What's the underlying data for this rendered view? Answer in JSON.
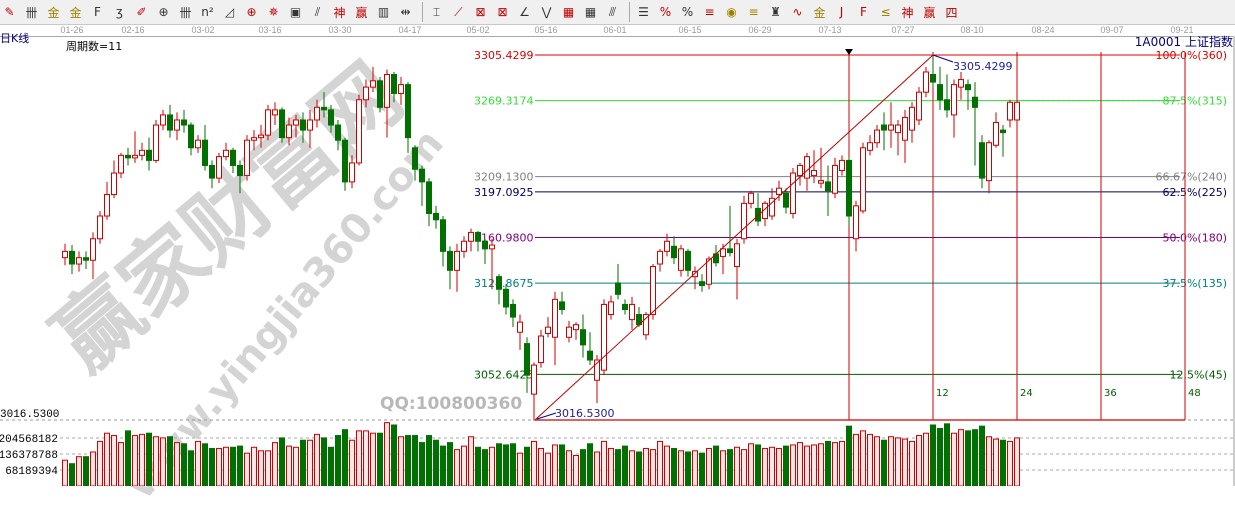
{
  "toolbar": {
    "icons": [
      "pen-icon",
      "vertical-lines-icon",
      "gold-split-icon",
      "gold-split-2-icon",
      "f-lines-icon",
      "spiral-icon",
      "pen-ruler-icon",
      "circle-cycle-icon",
      "cycle-lines-icon",
      "n2-lines-icon",
      "triangle-icon",
      "crosshair-icon",
      "star-target-icon",
      "box-grid-icon",
      "angle-lines-icon",
      "god-lines-icon",
      "win-lines-icon",
      "bars-grid-icon",
      "range-arrow-icon",
      "sep",
      "box-ruler-icon",
      "fan-icon",
      "gann-box-icon",
      "gann-grid-icon",
      "angle-icon",
      "wave-icon",
      "grid-icon",
      "grid-2-icon",
      "parallel-icon",
      "sep",
      "fibo-time-icon",
      "percent-fan-icon",
      "percent-icon",
      "percent-lines-icon",
      "gold-circle-icon",
      "gold-lines-icon",
      "tower-icon",
      "sine-wave-icon",
      "gold-box-icon",
      "j-fan-icon",
      "f-fan-icon",
      "gold-fan-icon",
      "god-fan-icon",
      "win-fan-icon",
      "four-fan-icon"
    ]
  },
  "header": {
    "period_type": "日K线",
    "cycle_count": "周期数=11",
    "symbol": "1A0001  上证指数"
  },
  "watermark": {
    "brand": "赢家财富网",
    "site": "www.yingjia360.com",
    "qq": "QQ:100800360"
  },
  "colors": {
    "up": "#d00000",
    "down": "#007000",
    "up_fill": "#ffe6e6",
    "fib_100": "#e00000",
    "fib_875": "#33dd33",
    "fib_6667": "#808080",
    "fib_625": "#000060",
    "fib_50": "#800080",
    "fib_375": "#008080",
    "fib_125": "#006000",
    "cycle_line": "#d00000"
  },
  "chart_data": {
    "type": "candlestick",
    "instrument": "1A0001  上证指数",
    "date_ticks": [
      "01-26",
      "02-16",
      "03-02",
      "03-16",
      "03-30",
      "04-17",
      "05-02",
      "05-16",
      "06-01",
      "06-15",
      "06-29",
      "07-13",
      "07-27",
      "08-10",
      "08-24",
      "09-07",
      "09-21"
    ],
    "price_range": [
      3016.53,
      3305.4299
    ],
    "swing_low": "3016.5300",
    "swing_high": "3305.4299",
    "price_axis_label": "3016.5300",
    "fib_levels": [
      {
        "price": "3305.4299",
        "label": "100.0%(360)",
        "color_key": "fib_100"
      },
      {
        "price": "3269.3174",
        "label": "87.5%(315)",
        "color_key": "fib_875"
      },
      {
        "price": "3209.1300",
        "label": "66.67%(240)",
        "color_key": "fib_6667"
      },
      {
        "price": "3197.0925",
        "label": "62.5%(225)",
        "color_key": "fib_625"
      },
      {
        "price": "3160.9800",
        "label": "50.0%(180)",
        "color_key": "fib_50"
      },
      {
        "price": "3124.8675",
        "label": "37.5%(135)",
        "color_key": "fib_375"
      },
      {
        "price": "3052.6425",
        "label": "12.5%(45)",
        "color_key": "fib_125"
      }
    ],
    "cycle_lines": [
      "12",
      "24",
      "36",
      "48"
    ],
    "volume_ticks": [
      "204568182",
      "136378788",
      "68189394"
    ],
    "volume_tick_values": [
      204568182,
      136378788,
      68189394
    ],
    "ohlc": [
      [
        3145,
        3156,
        3139,
        3150
      ],
      [
        3150,
        3155,
        3132,
        3140
      ],
      [
        3140,
        3150,
        3134,
        3145
      ],
      [
        3145,
        3150,
        3136,
        3143
      ],
      [
        3143,
        3165,
        3128,
        3160
      ],
      [
        3160,
        3182,
        3156,
        3178
      ],
      [
        3178,
        3205,
        3175,
        3195
      ],
      [
        3195,
        3222,
        3192,
        3212
      ],
      [
        3212,
        3228,
        3208,
        3226
      ],
      [
        3226,
        3232,
        3218,
        3224
      ],
      [
        3224,
        3245,
        3220,
        3226
      ],
      [
        3226,
        3236,
        3222,
        3230
      ],
      [
        3230,
        3240,
        3214,
        3222
      ],
      [
        3222,
        3254,
        3220,
        3250
      ],
      [
        3250,
        3262,
        3246,
        3258
      ],
      [
        3258,
        3266,
        3240,
        3246
      ],
      [
        3246,
        3260,
        3238,
        3254
      ],
      [
        3254,
        3262,
        3244,
        3250
      ],
      [
        3250,
        3252,
        3226,
        3232
      ],
      [
        3232,
        3242,
        3228,
        3238
      ],
      [
        3238,
        3250,
        3214,
        3218
      ],
      [
        3218,
        3222,
        3200,
        3208
      ],
      [
        3208,
        3228,
        3204,
        3225
      ],
      [
        3225,
        3236,
        3222,
        3230
      ],
      [
        3230,
        3232,
        3212,
        3218
      ],
      [
        3218,
        3222,
        3196,
        3210
      ],
      [
        3210,
        3242,
        3206,
        3238
      ],
      [
        3238,
        3246,
        3230,
        3240
      ],
      [
        3240,
        3250,
        3232,
        3242
      ],
      [
        3242,
        3266,
        3238,
        3262
      ],
      [
        3258,
        3268,
        3250,
        3262
      ],
      [
        3262,
        3264,
        3236,
        3240
      ],
      [
        3240,
        3256,
        3234,
        3250
      ],
      [
        3250,
        3258,
        3240,
        3254
      ],
      [
        3254,
        3260,
        3236,
        3246
      ],
      [
        3246,
        3262,
        3232,
        3254
      ],
      [
        3254,
        3270,
        3248,
        3264
      ],
      [
        3264,
        3276,
        3256,
        3262
      ],
      [
        3262,
        3266,
        3244,
        3250
      ],
      [
        3250,
        3254,
        3230,
        3238
      ],
      [
        3238,
        3240,
        3198,
        3205
      ],
      [
        3205,
        3226,
        3200,
        3220
      ],
      [
        3220,
        3274,
        3218,
        3270
      ],
      [
        3270,
        3286,
        3264,
        3280
      ],
      [
        3280,
        3296,
        3276,
        3285
      ],
      [
        3285,
        3288,
        3260,
        3264
      ],
      [
        3264,
        3294,
        3240,
        3290
      ],
      [
        3290,
        3292,
        3268,
        3275
      ],
      [
        3275,
        3288,
        3266,
        3282
      ],
      [
        3282,
        3284,
        3228,
        3240
      ],
      [
        3232,
        3234,
        3206,
        3215
      ],
      [
        3215,
        3218,
        3186,
        3205
      ],
      [
        3205,
        3208,
        3170,
        3180
      ],
      [
        3180,
        3186,
        3168,
        3175
      ],
      [
        3175,
        3178,
        3138,
        3150
      ],
      [
        3150,
        3154,
        3120,
        3135
      ],
      [
        3135,
        3156,
        3118,
        3150
      ],
      [
        3150,
        3162,
        3145,
        3158
      ],
      [
        3158,
        3168,
        3150,
        3165
      ],
      [
        3165,
        3166,
        3150,
        3158
      ],
      [
        3158,
        3160,
        3140,
        3152
      ],
      [
        3152,
        3160,
        3120,
        3155
      ],
      [
        3130,
        3132,
        3108,
        3120
      ],
      [
        3120,
        3124,
        3100,
        3106
      ],
      [
        3108,
        3112,
        3090,
        3098
      ],
      [
        3086,
        3100,
        3072,
        3094
      ],
      [
        3077,
        3082,
        3038,
        3052
      ],
      [
        3037,
        3062,
        3016,
        3060
      ],
      [
        3062,
        3088,
        3058,
        3083
      ],
      [
        3085,
        3098,
        3082,
        3090
      ],
      [
        3082,
        3118,
        3060,
        3112
      ],
      [
        3110,
        3118,
        3100,
        3104
      ],
      [
        3082,
        3095,
        3078,
        3090
      ],
      [
        3088,
        3094,
        3080,
        3092
      ],
      [
        3088,
        3100,
        3066,
        3076
      ],
      [
        3071,
        3086,
        3060,
        3064
      ],
      [
        3048,
        3068,
        3030,
        3064
      ],
      [
        3056,
        3112,
        3052,
        3108
      ],
      [
        3100,
        3115,
        3096,
        3110
      ],
      [
        3125,
        3140,
        3112,
        3116
      ],
      [
        3108,
        3112,
        3100,
        3104
      ],
      [
        3096,
        3114,
        3088,
        3108
      ],
      [
        3100,
        3106,
        3090,
        3092
      ],
      [
        3084,
        3102,
        3080,
        3100
      ],
      [
        3100,
        3140,
        3096,
        3138
      ],
      [
        3140,
        3152,
        3134,
        3150
      ],
      [
        3150,
        3164,
        3146,
        3158
      ],
      [
        3154,
        3162,
        3140,
        3145
      ],
      [
        3135,
        3155,
        3130,
        3152
      ],
      [
        3150,
        3152,
        3130,
        3135
      ],
      [
        3130,
        3138,
        3120,
        3134
      ],
      [
        3126,
        3132,
        3118,
        3123
      ],
      [
        3124,
        3146,
        3120,
        3144
      ],
      [
        3148,
        3155,
        3138,
        3141
      ],
      [
        3146,
        3156,
        3132,
        3152
      ],
      [
        3152,
        3186,
        3146,
        3149
      ],
      [
        3138,
        3160,
        3112,
        3156
      ],
      [
        3160,
        3194,
        3156,
        3188
      ],
      [
        3188,
        3198,
        3184,
        3196
      ],
      [
        3184,
        3196,
        3170,
        3174
      ],
      [
        3176,
        3190,
        3170,
        3188
      ],
      [
        3178,
        3200,
        3175,
        3192
      ],
      [
        3195,
        3206,
        3190,
        3200
      ],
      [
        3196,
        3200,
        3180,
        3185
      ],
      [
        3180,
        3216,
        3176,
        3212
      ],
      [
        3210,
        3220,
        3202,
        3218
      ],
      [
        3208,
        3228,
        3198,
        3225
      ],
      [
        3210,
        3230,
        3204,
        3214
      ],
      [
        3204,
        3232,
        3200,
        3206
      ],
      [
        3205,
        3218,
        3178,
        3198
      ],
      [
        3196,
        3224,
        3192,
        3218
      ],
      [
        3214,
        3226,
        3210,
        3222
      ],
      [
        3222,
        3224,
        3170,
        3178
      ],
      [
        3160,
        3190,
        3150,
        3186
      ],
      [
        3182,
        3236,
        3180,
        3232
      ],
      [
        3230,
        3242,
        3226,
        3236
      ],
      [
        3236,
        3250,
        3232,
        3246
      ],
      [
        3250,
        3260,
        3230,
        3246
      ],
      [
        3246,
        3268,
        3232,
        3250
      ],
      [
        3244,
        3254,
        3226,
        3250
      ],
      [
        3238,
        3262,
        3220,
        3256
      ],
      [
        3246,
        3268,
        3236,
        3264
      ],
      [
        3254,
        3280,
        3250,
        3276
      ],
      [
        3276,
        3296,
        3272,
        3292
      ],
      [
        3290,
        3305,
        3280,
        3284
      ],
      [
        3282,
        3296,
        3262,
        3270
      ],
      [
        3270,
        3290,
        3256,
        3262
      ],
      [
        3258,
        3286,
        3240,
        3282
      ],
      [
        3280,
        3292,
        3270,
        3286
      ],
      [
        3282,
        3286,
        3262,
        3278
      ],
      [
        3272,
        3284,
        3218,
        3264
      ],
      [
        3236,
        3242,
        3200,
        3208
      ],
      [
        3206,
        3238,
        3196,
        3236
      ],
      [
        3234,
        3260,
        3232,
        3252
      ],
      [
        3246,
        3250,
        3225,
        3244
      ],
      [
        3254,
        3270,
        3248,
        3268
      ],
      [
        3254,
        3270,
        3250,
        3268
      ]
    ],
    "volume": [
      110000000.0,
      95000000.0,
      125000000.0,
      125000000.0,
      145000000.0,
      190000000.0,
      225000000.0,
      215000000.0,
      185000000.0,
      235000000.0,
      215000000.0,
      220000000.0,
      225000000.0,
      210000000.0,
      205000000.0,
      210000000.0,
      185000000.0,
      180000000.0,
      150000000.0,
      190000000.0,
      180000000.0,
      160000000.0,
      160000000.0,
      165000000.0,
      165000000.0,
      170000000.0,
      140000000.0,
      165000000.0,
      150000000.0,
      150000000.0,
      185000000.0,
      205000000.0,
      170000000.0,
      165000000.0,
      195000000.0,
      195000000.0,
      220000000.0,
      205000000.0,
      165000000.0,
      215000000.0,
      240000000.0,
      195000000.0,
      235000000.0,
      235000000.0,
      225000000.0,
      225000000.0,
      270000000.0,
      260000000.0,
      210000000.0,
      215000000.0,
      215000000.0,
      185000000.0,
      215000000.0,
      195000000.0,
      170000000.0,
      185000000.0,
      155000000.0,
      170000000.0,
      210000000.0,
      165000000.0,
      155000000.0,
      165000000.0,
      180000000.0,
      175000000.0,
      180000000.0,
      140000000.0,
      165000000.0,
      190000000.0,
      160000000.0,
      140000000.0,
      175000000.0,
      175000000.0,
      150000000.0,
      130000000.0,
      155000000.0,
      180000000.0,
      145000000.0,
      190000000.0,
      160000000.0,
      155000000.0,
      170000000.0,
      150000000.0,
      145000000.0,
      160000000.0,
      155000000.0,
      190000000.0,
      170000000.0,
      160000000.0,
      150000000.0,
      145000000.0,
      150000000.0,
      140000000.0,
      160000000.0,
      170000000.0,
      150000000.0,
      155000000.0,
      165000000.0,
      155000000.0,
      180000000.0,
      175000000.0,
      160000000.0,
      165000000.0,
      160000000.0,
      170000000.0,
      175000000.0,
      185000000.0,
      170000000.0,
      175000000.0,
      180000000.0,
      190000000.0,
      185000000.0,
      190000000.0,
      255000000.0,
      220000000.0,
      235000000.0,
      220000000.0,
      210000000.0,
      195000000.0,
      210000000.0,
      205000000.0,
      200000000.0,
      190000000.0,
      215000000.0,
      225000000.0,
      260000000.0,
      245000000.0,
      265000000.0,
      225000000.0,
      240000000.0,
      235000000.0,
      240000000.0,
      255000000.0,
      210000000.0,
      200000000.0,
      195000000.0,
      190000000.0,
      205000000.0
    ]
  }
}
